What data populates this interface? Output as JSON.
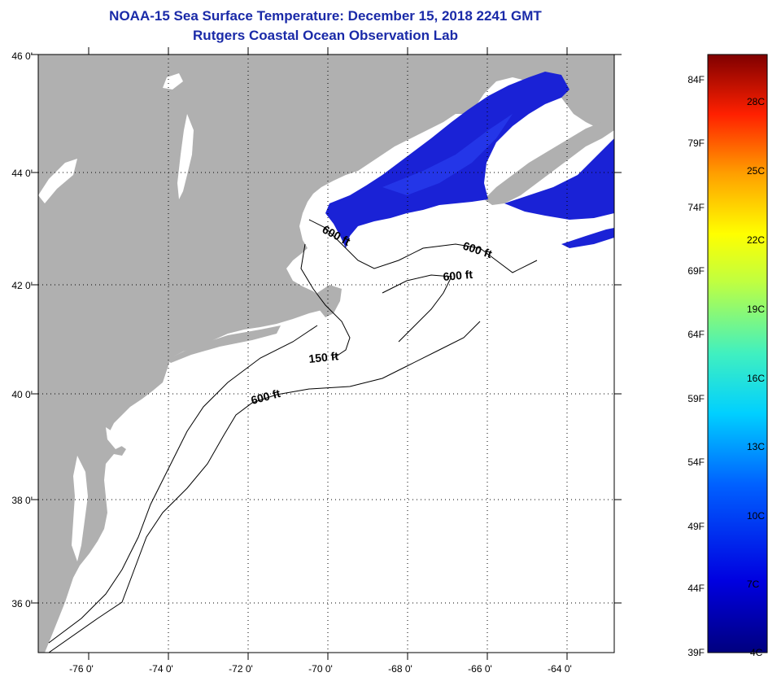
{
  "title": "NOAA-15 Sea Surface Temperature:  December 15, 2018 2241 GMT",
  "subtitle": "Rutgers Coastal Ocean Observation Lab",
  "lat_ticks": [
    "46 0'",
    "44 0'",
    "42 0'",
    "40 0'",
    "38 0'",
    "36 0'"
  ],
  "lon_ticks": [
    "-76 0'",
    "-74 0'",
    "-72 0'",
    "-70 0'",
    "-68 0'",
    "-66 0'",
    "-64 0'"
  ],
  "contour_labels": [
    {
      "text": "600 ft",
      "id": "gulf-maine-west"
    },
    {
      "text": "600 ft",
      "id": "gulf-maine-east"
    },
    {
      "text": "600 ft",
      "id": "georges-bank"
    },
    {
      "text": "150 ft",
      "id": "nantucket"
    },
    {
      "text": "600 ft",
      "id": "shelf-break"
    }
  ],
  "colorbar": {
    "fahrenheit": [
      "84F",
      "79F",
      "74F",
      "69F",
      "64F",
      "59F",
      "54F",
      "49F",
      "44F",
      "39F"
    ],
    "celsius": [
      "28C",
      "25C",
      "22C",
      "19C",
      "16C",
      "13C",
      "10C",
      "7C",
      "4C"
    ]
  },
  "colors": {
    "land": "#b0b0b0",
    "ocean": "#ffffff",
    "sst_cold": "#1a22d6",
    "title": "#1a2aa8"
  }
}
